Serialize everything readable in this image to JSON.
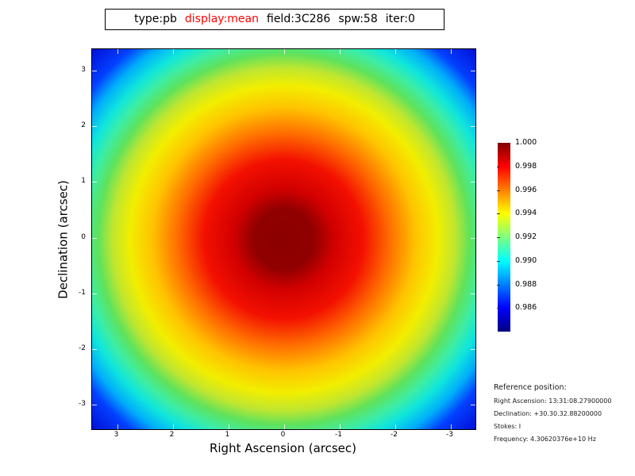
{
  "title_bar": {
    "type": "type:pb",
    "display": "display:mean",
    "field": "field:3C286",
    "spw": "spw:58",
    "iter": "iter:0",
    "display_color": "#ff0000"
  },
  "axes": {
    "x": {
      "label": "Right Ascension (arcsec)",
      "tick_values": [
        3,
        2,
        1,
        0,
        -1,
        -2,
        -3
      ],
      "tick_labels": [
        "3",
        "2",
        "1",
        "0",
        "-1",
        "-2",
        "-3"
      ]
    },
    "y": {
      "label": "Declination (arcsec)",
      "tick_values": [
        3,
        2,
        1,
        0,
        -1,
        -2,
        -3
      ],
      "tick_labels": [
        "3",
        "2",
        "1",
        "0",
        "-1",
        "-2",
        "-3"
      ]
    }
  },
  "colorbar": {
    "tick_labels": [
      "1.000",
      "0.998",
      "0.996",
      "0.994",
      "0.992",
      "0.990",
      "0.988",
      "0.986"
    ],
    "vmax": 1.0,
    "vmin": 0.984,
    "colormap": "jet"
  },
  "reference": {
    "heading": "Reference position:",
    "lines": [
      "Right Ascension: 13:31:08.27900000",
      "Declination: +30.30.32.88200000",
      "Stokes: I",
      "Frequency: 4.30620376e+10 Hz"
    ]
  },
  "chart_data": {
    "type": "heatmap",
    "title": "type:pb display:mean field:3C286 spw:58 iter:0",
    "xlabel": "Right Ascension (arcsec)",
    "ylabel": "Declination (arcsec)",
    "x_tick_values": [
      3,
      2,
      1,
      0,
      -1,
      -2,
      -3
    ],
    "y_tick_values": [
      3,
      2,
      1,
      0,
      -1,
      -2,
      -3
    ],
    "xlim": [
      3.45,
      -3.45
    ],
    "ylim": [
      -3.42,
      3.42
    ],
    "grid": false,
    "colormap": "jet",
    "colorbar": {
      "position": "right",
      "vmin": 0.984,
      "vmax": 1.0,
      "ticks": [
        1.0,
        0.998,
        0.996,
        0.994,
        0.992,
        0.99,
        0.988,
        0.986
      ]
    },
    "pattern": "radially symmetric primary-beam response, peak 1.000 at image center (0,0), decreasing outward; ~0.992 at edge midpoints, ~0.985 at corners",
    "radial_profile": [
      {
        "radius_arcsec": 0.0,
        "value": 1.0
      },
      {
        "radius_arcsec": 0.91,
        "value": 0.9987
      },
      {
        "radius_arcsec": 1.91,
        "value": 0.9963
      },
      {
        "radius_arcsec": 2.76,
        "value": 0.9942
      },
      {
        "radius_arcsec": 3.3,
        "value": 0.9925
      },
      {
        "radius_arcsec": 3.6,
        "value": 0.9912
      },
      {
        "radius_arcsec": 4.37,
        "value": 0.9872
      },
      {
        "radius_arcsec": 4.81,
        "value": 0.9851
      }
    ]
  }
}
